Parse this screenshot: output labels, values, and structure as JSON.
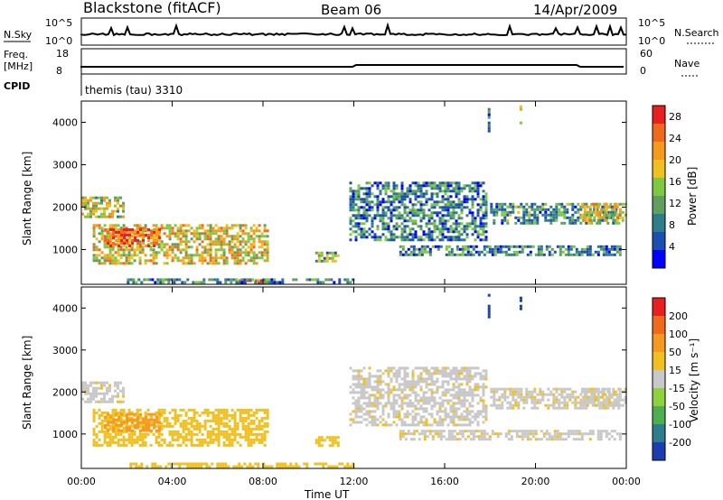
{
  "header": {
    "station": "Blackstone (fitACF)",
    "beam": "Beam 06",
    "date": "14/Apr/2009"
  },
  "top_panels": {
    "nsky_label": "N.Sky",
    "nsky_ticks": [
      "10^5",
      "10^0"
    ],
    "nsearch_label": "N.Search",
    "nsearch_ticks": [
      "10^5",
      "10^0"
    ],
    "freq_label": "Freq.",
    "freq_unit": "[MHz]",
    "freq_ticks": [
      "18",
      "8"
    ],
    "nave_label": "Nave",
    "nave_ticks": [
      "60",
      "0"
    ],
    "cpid_label": "CPID",
    "cpid_text": "themis (tau) 3310"
  },
  "chart_data": [
    {
      "type": "heatmap",
      "name": "power",
      "ylabel": "Slant Range [km]",
      "xlabel": "",
      "xlim": [
        0,
        24
      ],
      "ylim": [
        180,
        4500
      ],
      "yticks": [
        "1000",
        "2000",
        "3000",
        "4000"
      ],
      "colorbar": {
        "label": "Power [dB]",
        "ticks": [
          "4",
          "8",
          "12",
          "16",
          "20",
          "24",
          "28"
        ],
        "range": [
          0,
          30
        ],
        "colors": [
          "#0000ff",
          "#1b4fb0",
          "#2e7d8c",
          "#5fa060",
          "#7ec843",
          "#f0c020",
          "#f59a1e",
          "#f06a1e",
          "#e82020"
        ]
      },
      "regions": [
        {
          "t": [
            0.0,
            1.8
          ],
          "r": [
            1750,
            2250
          ],
          "level": 0.55
        },
        {
          "t": [
            0.5,
            8.2
          ],
          "r": [
            700,
            1600
          ],
          "level": 0.62
        },
        {
          "t": [
            1.0,
            3.5
          ],
          "r": [
            1100,
            1500
          ],
          "level": 0.85
        },
        {
          "t": [
            6.8,
            8.2
          ],
          "r": [
            200,
            300
          ],
          "level": 0.9
        },
        {
          "t": [
            2.0,
            12.0
          ],
          "r": [
            200,
            320
          ],
          "level": 0.3
        },
        {
          "t": [
            10.3,
            11.3
          ],
          "r": [
            700,
            950
          ],
          "level": 0.4
        },
        {
          "t": [
            11.8,
            17.8
          ],
          "r": [
            1200,
            2600
          ],
          "level": 0.3
        },
        {
          "t": [
            14.0,
            23.7
          ],
          "r": [
            900,
            1100
          ],
          "level": 0.3
        },
        {
          "t": [
            18.0,
            23.7
          ],
          "r": [
            1600,
            2100
          ],
          "level": 0.35
        },
        {
          "t": [
            22.0,
            24.0
          ],
          "r": [
            1700,
            2100
          ],
          "level": 0.6
        },
        {
          "t": [
            17.9,
            18.0
          ],
          "r": [
            3800,
            4400
          ],
          "level": 0.2
        },
        {
          "t": [
            19.3,
            19.4
          ],
          "r": [
            4000,
            4400
          ],
          "level": 0.6
        }
      ]
    },
    {
      "type": "heatmap",
      "name": "velocity",
      "ylabel": "Slant Range [km]",
      "xlabel": "Time UT",
      "xlim": [
        0,
        24
      ],
      "ylim": [
        180,
        4500
      ],
      "xticks": [
        "00:00",
        "04:00",
        "08:00",
        "12:00",
        "16:00",
        "20:00",
        "00:00"
      ],
      "yticks": [
        "1000",
        "2000",
        "3000",
        "4000"
      ],
      "colorbar": {
        "label": "Velocity [m s⁻¹]",
        "ticks": [
          "200",
          "100",
          "50",
          "15",
          "-15",
          "-50",
          "-100",
          "-200"
        ],
        "colors": [
          "#1b3fb0",
          "#2e7d8c",
          "#4fae4f",
          "#8ed040",
          "#c8c8c8",
          "#f0c020",
          "#f59a1e",
          "#f06a1e",
          "#e82020"
        ]
      },
      "regions": [
        {
          "t": [
            0.0,
            1.8
          ],
          "r": [
            1750,
            2250
          ],
          "v": "gray"
        },
        {
          "t": [
            0.5,
            8.2
          ],
          "r": [
            700,
            1600
          ],
          "v": "orange"
        },
        {
          "t": [
            1.0,
            3.5
          ],
          "r": [
            1100,
            1500
          ],
          "v": "darkorange"
        },
        {
          "t": [
            2.0,
            12.0
          ],
          "r": [
            200,
            320
          ],
          "v": "orange"
        },
        {
          "t": [
            10.3,
            11.3
          ],
          "r": [
            700,
            950
          ],
          "v": "orange"
        },
        {
          "t": [
            11.8,
            17.8
          ],
          "r": [
            1200,
            2600
          ],
          "v": "gray"
        },
        {
          "t": [
            14.0,
            23.7
          ],
          "r": [
            900,
            1100
          ],
          "v": "gray"
        },
        {
          "t": [
            18.0,
            23.7
          ],
          "r": [
            1600,
            2100
          ],
          "v": "gray"
        },
        {
          "t": [
            22.0,
            24.0
          ],
          "r": [
            1700,
            2100
          ],
          "v": "gray"
        },
        {
          "t": [
            17.9,
            18.0
          ],
          "r": [
            3800,
            4400
          ],
          "v": "blue"
        },
        {
          "t": [
            19.3,
            19.4
          ],
          "r": [
            4000,
            4400
          ],
          "v": "blue"
        }
      ]
    }
  ]
}
